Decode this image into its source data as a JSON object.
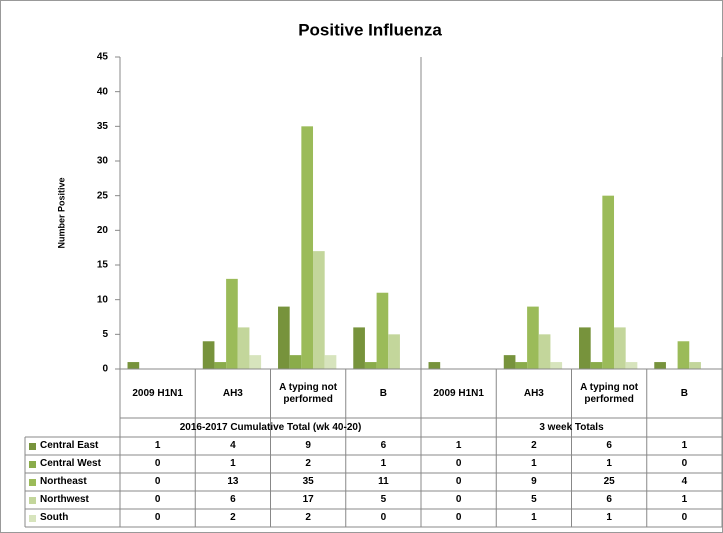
{
  "chart_data": {
    "type": "bar",
    "title": "Positive Influenza",
    "y_label": "Number Positive",
    "categories": [
      "2009 H1N1",
      "AH3",
      "A typing not performed",
      "B",
      "2009 H1N1",
      "AH3",
      "A typing not performed",
      "B"
    ],
    "groups": [
      "2016-2017 Cumulative Total (wk 40-20)",
      "3 week Totals"
    ],
    "series": [
      {
        "name": "Central East",
        "color": "#77933c",
        "values": [
          1,
          4,
          9,
          6,
          1,
          2,
          6,
          1
        ]
      },
      {
        "name": "Central West",
        "color": "#8aac4a",
        "values": [
          0,
          1,
          2,
          1,
          0,
          1,
          1,
          0
        ]
      },
      {
        "name": "Northeast",
        "color": "#9bbb59",
        "values": [
          0,
          13,
          35,
          11,
          0,
          9,
          25,
          4
        ]
      },
      {
        "name": "Northwest",
        "color": "#c3d69b",
        "values": [
          0,
          6,
          17,
          5,
          0,
          5,
          6,
          1
        ]
      },
      {
        "name": "South",
        "color": "#d7e4bd",
        "values": [
          0,
          2,
          2,
          0,
          0,
          1,
          1,
          0
        ]
      }
    ],
    "ylim": [
      0,
      45
    ],
    "yticks": [
      0,
      5,
      10,
      15,
      20,
      25,
      30,
      35,
      40,
      45
    ]
  }
}
